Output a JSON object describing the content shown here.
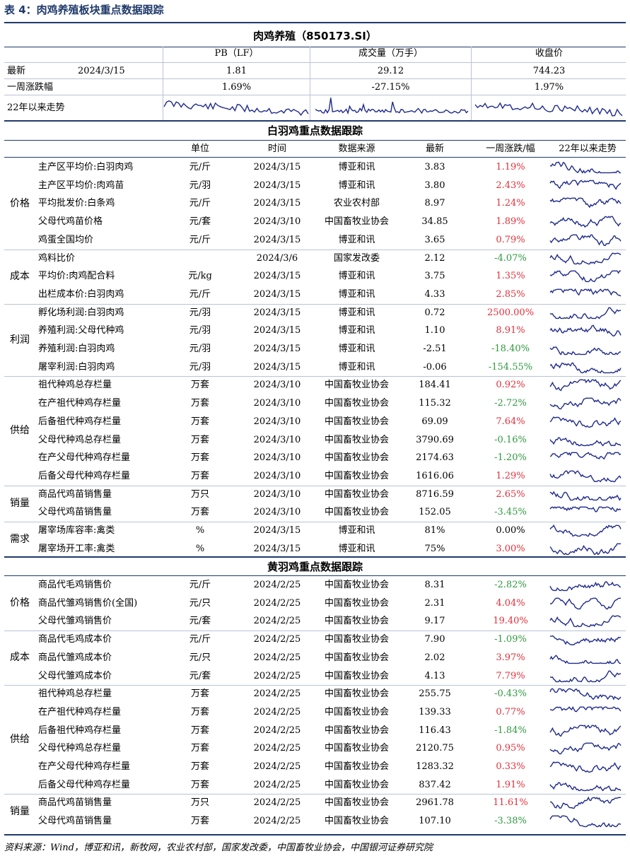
{
  "title": "表 4：肉鸡养殖板块重点数据跟踪",
  "index_header": {
    "name": "肉鸡养殖（850173.SI）",
    "col_pb": "PB（LF）",
    "col_volume": "成交量（万手）",
    "col_close": "收盘价",
    "row_latest_label": "最新",
    "row_latest_date": "2024/3/15",
    "pb_latest": "1.81",
    "volume_latest": "29.12",
    "close_latest": "744.23",
    "row_week_label": "一周涨跌幅",
    "pb_week": "1.69%",
    "volume_week": "-27.15%",
    "close_week": "1.97%",
    "row_trend_label": "22年以来走势"
  },
  "colors": {
    "accent": "#1f3a6b",
    "positive": "#e0313b",
    "negative": "#2f9a3f",
    "spark": "#1f2a8c"
  },
  "white_section": {
    "title": "白羽鸡重点数据跟踪",
    "columns": [
      "单位",
      "时间",
      "数据来源",
      "最新",
      "一周涨跌/幅",
      "22年以来走势"
    ],
    "groups": [
      {
        "category": "价格",
        "rows": [
          {
            "name": "主产区平均价:白羽肉鸡",
            "unit": "元/斤",
            "date": "2024/3/15",
            "source": "博亚和讯",
            "latest": "3.83",
            "change": "1.19%",
            "dir": "pos"
          },
          {
            "name": "主产区平均价:肉鸡苗",
            "unit": "元/羽",
            "date": "2024/3/15",
            "source": "博亚和讯",
            "latest": "3.80",
            "change": "2.43%",
            "dir": "pos"
          },
          {
            "name": "平均批发价:白条鸡",
            "unit": "元/斤",
            "date": "2024/3/15",
            "source": "农业农村部",
            "latest": "8.97",
            "change": "1.24%",
            "dir": "pos"
          },
          {
            "name": "父母代鸡苗价格",
            "unit": "元/套",
            "date": "2024/3/10",
            "source": "中国畜牧业协会",
            "latest": "34.85",
            "change": "1.89%",
            "dir": "pos"
          },
          {
            "name": "鸡蛋全国均价",
            "unit": "元/斤",
            "date": "2024/3/15",
            "source": "博亚和讯",
            "latest": "3.65",
            "change": "0.79%",
            "dir": "pos"
          }
        ]
      },
      {
        "category": "成本",
        "rows": [
          {
            "name": "鸡料比价",
            "unit": "",
            "date": "2024/3/6",
            "source": "国家发改委",
            "latest": "2.12",
            "change": "-4.07%",
            "dir": "neg"
          },
          {
            "name": "平均价:肉鸡配合料",
            "unit": "元/kg",
            "date": "2024/3/15",
            "source": "博亚和讯",
            "latest": "3.75",
            "change": "1.35%",
            "dir": "pos"
          },
          {
            "name": "出栏成本价:白羽肉鸡",
            "unit": "元/斤",
            "date": "2024/3/15",
            "source": "博亚和讯",
            "latest": "4.33",
            "change": "2.85%",
            "dir": "pos"
          }
        ]
      },
      {
        "category": "利润",
        "rows": [
          {
            "name": "孵化场利润:白羽肉鸡",
            "unit": "元/羽",
            "date": "2024/3/15",
            "source": "博亚和讯",
            "latest": "0.72",
            "change": "2500.00%",
            "dir": "pos"
          },
          {
            "name": "养殖利润:父母代种鸡",
            "unit": "元/羽",
            "date": "2024/3/15",
            "source": "博亚和讯",
            "latest": "1.10",
            "change": "8.91%",
            "dir": "pos"
          },
          {
            "name": "养殖利润:白羽肉鸡",
            "unit": "元/羽",
            "date": "2024/3/15",
            "source": "博亚和讯",
            "latest": "-2.51",
            "change": "-18.40%",
            "dir": "neg"
          },
          {
            "name": "屠宰利润:白羽肉鸡",
            "unit": "元/羽",
            "date": "2024/3/15",
            "source": "博亚和讯",
            "latest": "-0.06",
            "change": "-154.55%",
            "dir": "neg"
          }
        ]
      },
      {
        "category": "供给",
        "rows": [
          {
            "name": "祖代种鸡总存栏量",
            "unit": "万套",
            "date": "2024/3/10",
            "source": "中国畜牧业协会",
            "latest": "184.41",
            "change": "0.92%",
            "dir": "pos"
          },
          {
            "name": "在产祖代种鸡存栏量",
            "unit": "万套",
            "date": "2024/3/10",
            "source": "中国畜牧业协会",
            "latest": "115.32",
            "change": "-2.72%",
            "dir": "neg"
          },
          {
            "name": "后备祖代种鸡存栏量",
            "unit": "万套",
            "date": "2024/3/10",
            "source": "中国畜牧业协会",
            "latest": "69.09",
            "change": "7.64%",
            "dir": "pos"
          },
          {
            "name": "父母代种鸡总存栏量",
            "unit": "万套",
            "date": "2024/3/10",
            "source": "中国畜牧业协会",
            "latest": "3790.69",
            "change": "-0.16%",
            "dir": "neg"
          },
          {
            "name": "在产父母代种鸡存栏量",
            "unit": "万套",
            "date": "2024/3/10",
            "source": "中国畜牧业协会",
            "latest": "2174.63",
            "change": "-1.20%",
            "dir": "neg"
          },
          {
            "name": "后备父母代种鸡存栏量",
            "unit": "万套",
            "date": "2024/3/10",
            "source": "中国畜牧业协会",
            "latest": "1616.06",
            "change": "1.29%",
            "dir": "pos"
          }
        ]
      },
      {
        "category": "销量",
        "rows": [
          {
            "name": "商品代鸡苗销售量",
            "unit": "万只",
            "date": "2024/3/10",
            "source": "中国畜牧业协会",
            "latest": "8716.59",
            "change": "2.65%",
            "dir": "pos"
          },
          {
            "name": "父母代鸡苗销售量",
            "unit": "万套",
            "date": "2024/3/10",
            "source": "中国畜牧业协会",
            "latest": "152.05",
            "change": "-3.45%",
            "dir": "neg"
          }
        ]
      },
      {
        "category": "需求",
        "rows": [
          {
            "name": "屠宰场库容率:禽类",
            "unit": "%",
            "date": "2024/3/15",
            "source": "博亚和讯",
            "latest": "81%",
            "change": "0.00%",
            "dir": "none"
          },
          {
            "name": "屠宰场开工率:禽类",
            "unit": "%",
            "date": "2024/3/15",
            "source": "博亚和讯",
            "latest": "75%",
            "change": "3.00%",
            "dir": "pos"
          }
        ]
      }
    ]
  },
  "yellow_section": {
    "title": "黄羽鸡重点数据跟踪",
    "groups": [
      {
        "category": "价格",
        "rows": [
          {
            "name": "商品代毛鸡销售价",
            "unit": "元/斤",
            "date": "2024/2/25",
            "source": "中国畜牧业协会",
            "latest": "8.31",
            "change": "-2.82%",
            "dir": "neg"
          },
          {
            "name": "商品代雏鸡销售价(全国)",
            "unit": "元/只",
            "date": "2024/2/25",
            "source": "中国畜牧业协会",
            "latest": "2.31",
            "change": "4.04%",
            "dir": "pos"
          },
          {
            "name": "父母代雏鸡销售价",
            "unit": "元/套",
            "date": "2024/2/25",
            "source": "中国畜牧业协会",
            "latest": "9.17",
            "change": "19.40%",
            "dir": "pos"
          }
        ]
      },
      {
        "category": "成本",
        "rows": [
          {
            "name": "商品代毛鸡成本价",
            "unit": "元/斤",
            "date": "2024/2/25",
            "source": "中国畜牧业协会",
            "latest": "7.90",
            "change": "-1.09%",
            "dir": "neg"
          },
          {
            "name": "商品代雏鸡成本价",
            "unit": "元/只",
            "date": "2024/2/25",
            "source": "中国畜牧业协会",
            "latest": "2.02",
            "change": "3.97%",
            "dir": "pos"
          },
          {
            "name": "父母代雏鸡成本价",
            "unit": "元/套",
            "date": "2024/2/25",
            "source": "中国畜牧业协会",
            "latest": "4.13",
            "change": "7.79%",
            "dir": "pos"
          }
        ]
      },
      {
        "category": "供给",
        "rows": [
          {
            "name": "祖代种鸡总存栏量",
            "unit": "万套",
            "date": "2024/2/25",
            "source": "中国畜牧业协会",
            "latest": "255.75",
            "change": "-0.43%",
            "dir": "neg"
          },
          {
            "name": "在产祖代种鸡存栏量",
            "unit": "万套",
            "date": "2024/2/25",
            "source": "中国畜牧业协会",
            "latest": "139.33",
            "change": "0.77%",
            "dir": "pos"
          },
          {
            "name": "后备祖代种鸡存栏量",
            "unit": "万套",
            "date": "2024/2/25",
            "source": "中国畜牧业协会",
            "latest": "116.43",
            "change": "-1.84%",
            "dir": "neg"
          },
          {
            "name": "父母代种鸡总存栏量",
            "unit": "万套",
            "date": "2024/2/25",
            "source": "中国畜牧业协会",
            "latest": "2120.75",
            "change": "0.95%",
            "dir": "pos"
          },
          {
            "name": "在产父母代种鸡存栏量",
            "unit": "万套",
            "date": "2024/2/25",
            "source": "中国畜牧业协会",
            "latest": "1283.32",
            "change": "0.33%",
            "dir": "pos"
          },
          {
            "name": "后备父母代种鸡存栏量",
            "unit": "万套",
            "date": "2024/2/25",
            "source": "中国畜牧业协会",
            "latest": "837.42",
            "change": "1.91%",
            "dir": "pos"
          }
        ]
      },
      {
        "category": "销量",
        "rows": [
          {
            "name": "商品代鸡苗销售量",
            "unit": "万只",
            "date": "2024/2/25",
            "source": "中国畜牧业协会",
            "latest": "2961.78",
            "change": "11.61%",
            "dir": "pos"
          },
          {
            "name": "父母代鸡苗销售量",
            "unit": "万套",
            "date": "2024/2/25",
            "source": "中国畜牧业协会",
            "latest": "107.10",
            "change": "-3.38%",
            "dir": "neg"
          }
        ]
      }
    ]
  },
  "footer": "资料来源：Wind，博亚和讯，新牧网，农业农村部，国家发改委，中国畜牧业协会，中国银河证券研究院"
}
